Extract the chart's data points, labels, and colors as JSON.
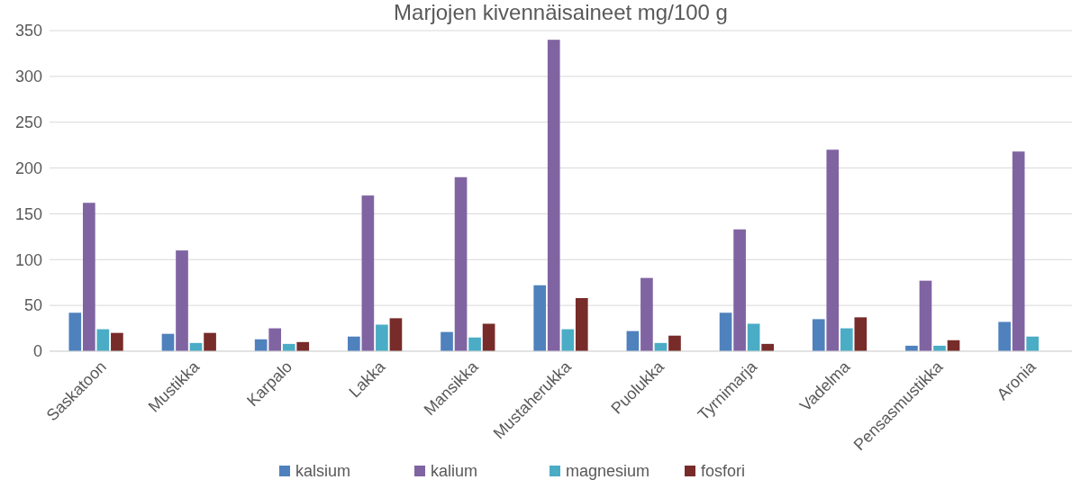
{
  "chart_data": {
    "type": "bar",
    "title": "Marjojen kivennäisaineet mg/100 g",
    "categories": [
      "Saskatoon",
      "Mustikka",
      "Karpalo",
      "Lakka",
      "Mansikka",
      "Mustaherukka",
      "Puolukka",
      "Tyrnimarja",
      "Vadelma",
      "Pensasmustikka",
      "Aronia"
    ],
    "series": [
      {
        "name": "kalsium",
        "color": "#4f81bd",
        "values": [
          42,
          19,
          13,
          16,
          21,
          72,
          22,
          42,
          35,
          6,
          32
        ]
      },
      {
        "name": "kalium",
        "color": "#8064a2",
        "values": [
          162,
          110,
          25,
          170,
          190,
          340,
          80,
          133,
          220,
          77,
          218
        ]
      },
      {
        "name": "magnesium",
        "color": "#4bacc6",
        "values": [
          24,
          9,
          8,
          29,
          15,
          24,
          9,
          30,
          25,
          6,
          16
        ]
      },
      {
        "name": "fosfori",
        "color": "#772c2a",
        "values": [
          20,
          20,
          10,
          36,
          30,
          58,
          17,
          8,
          37,
          12,
          null
        ]
      }
    ],
    "ylim": [
      0,
      350
    ],
    "yticks": [
      0,
      50,
      100,
      150,
      200,
      250,
      300,
      350
    ],
    "grid": "y",
    "legend": "bottom"
  }
}
